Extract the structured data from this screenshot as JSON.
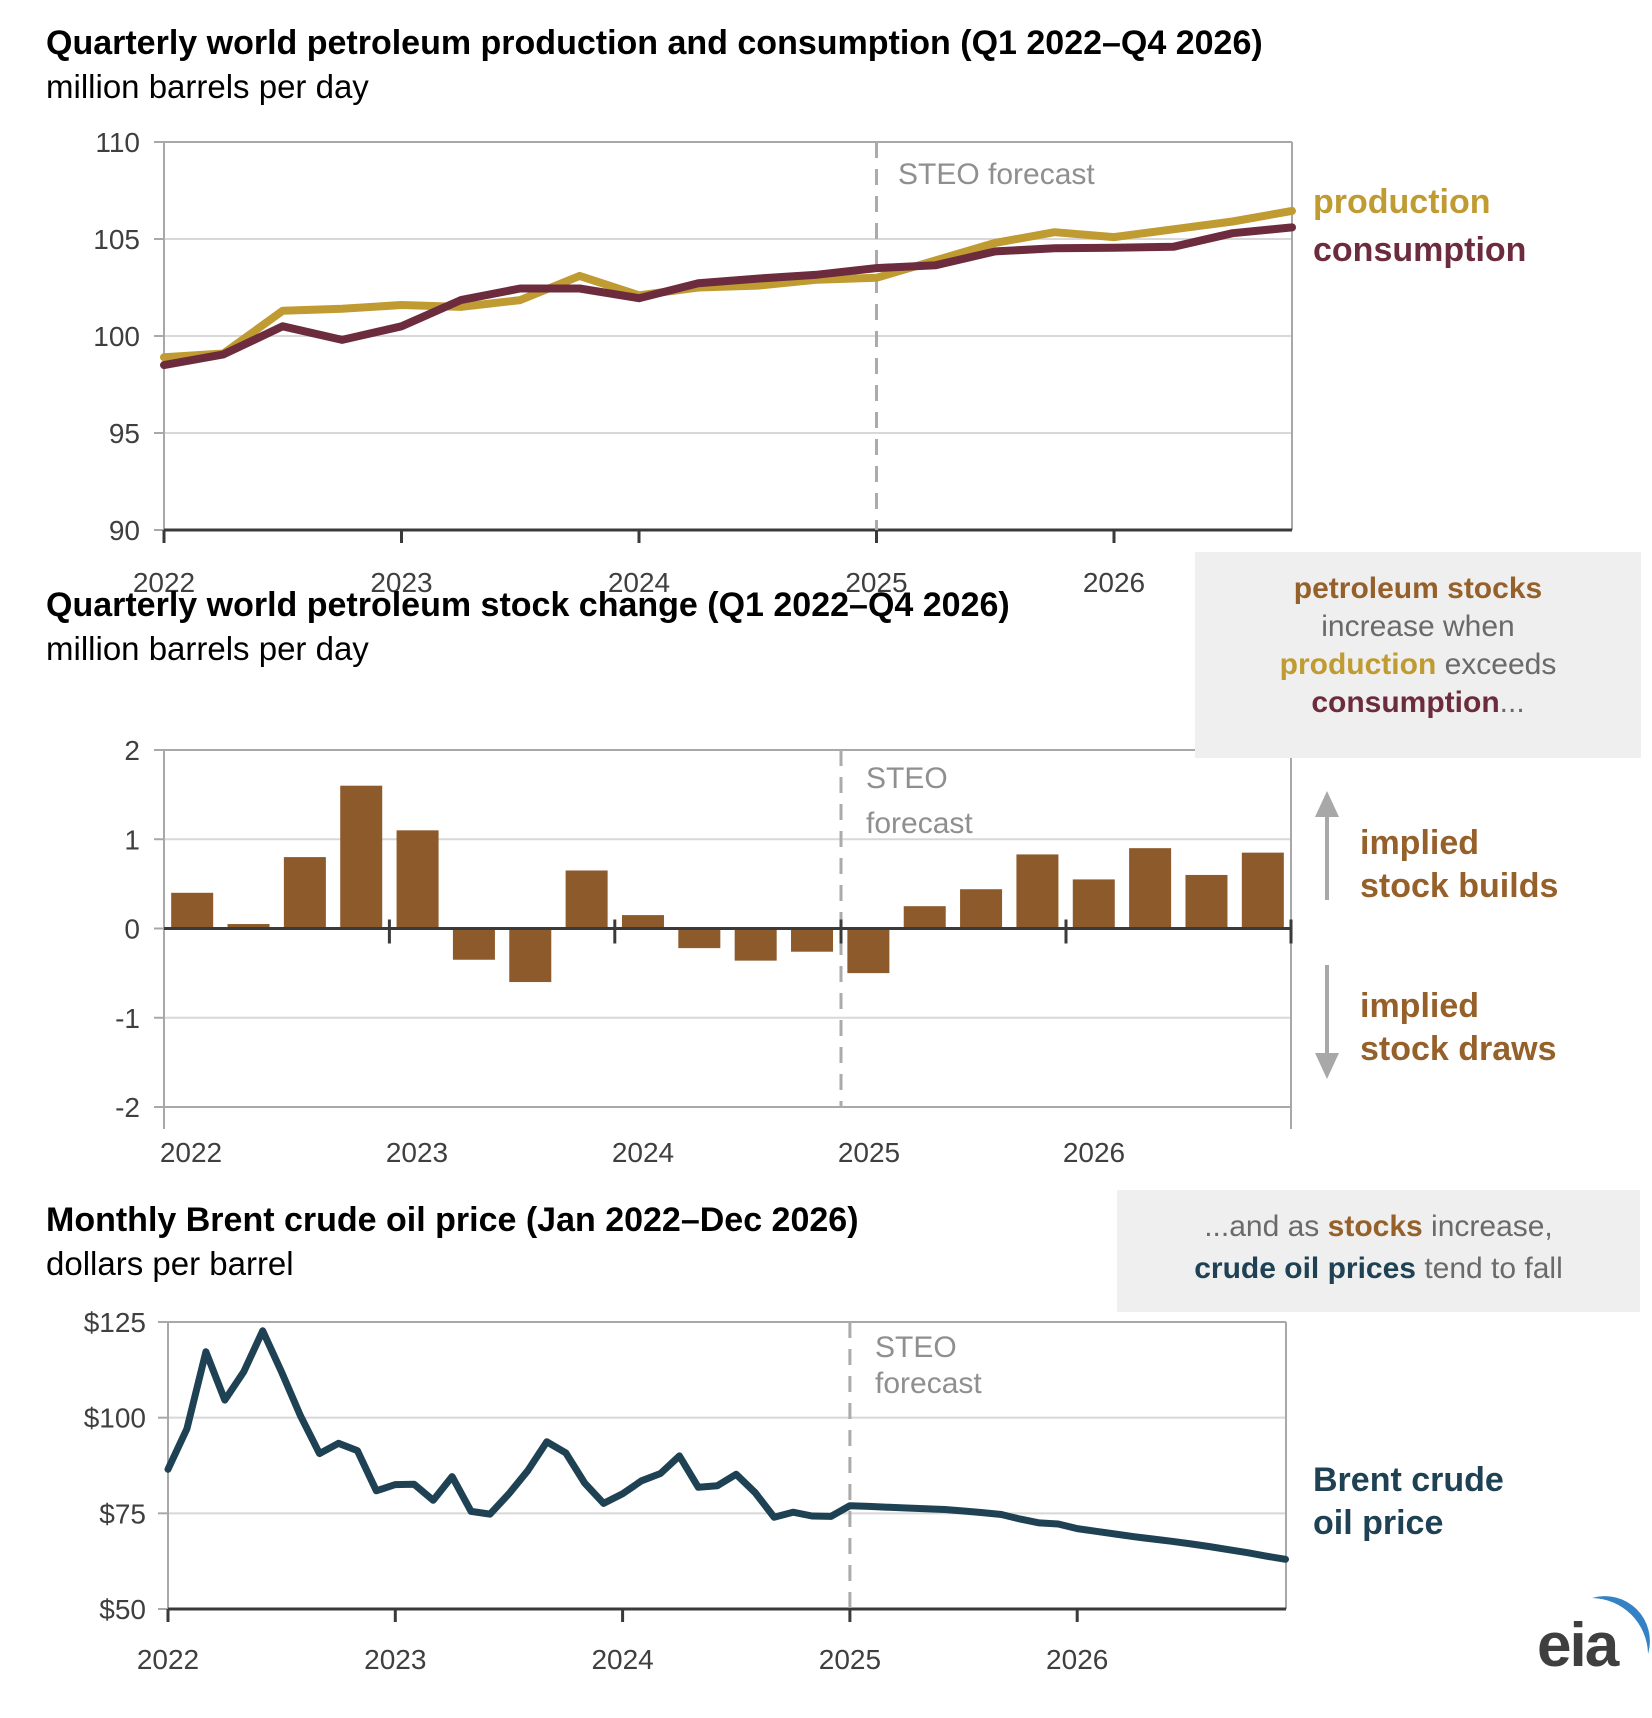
{
  "colors": {
    "production": "#bf9b32",
    "consumption": "#6d2c3e",
    "stocks_bar": "#8c5a2b",
    "stocks_text": "#96602a",
    "brent": "#1e4254",
    "gray_text": "#6a6a6a",
    "forecast_text": "#8f8f8f",
    "dashed_line": "#ababab",
    "grid": "#d8d8d8",
    "frame": "#a8a8a8",
    "axis_dark": "#3a3a3a",
    "tick_label": "#3f3f3f",
    "annotation_bg": "#efefef",
    "arrow": "#a8a8a8",
    "logo_blue": "#3482c5",
    "logo_text": "#3f3f3f"
  },
  "chart_data": [
    {
      "type": "line",
      "title": "Quarterly world petroleum production and consumption (Q1 2022–Q4 2026)",
      "subtitle": "million barrels per day",
      "xlabel": "",
      "ylabel": "million barrels per day",
      "ylim": [
        90,
        110
      ],
      "grid": true,
      "legend_position": "right",
      "x_tick_labels": [
        "2022",
        "2023",
        "2024",
        "2025",
        "2026"
      ],
      "y_tick_labels": [
        "110",
        "105",
        "100",
        "95",
        "90"
      ],
      "categories": [
        "Q1 2022",
        "Q2 2022",
        "Q3 2022",
        "Q4 2022",
        "Q1 2023",
        "Q2 2023",
        "Q3 2023",
        "Q4 2023",
        "Q1 2024",
        "Q2 2024",
        "Q3 2024",
        "Q4 2024",
        "Q1 2025",
        "Q2 2025",
        "Q3 2025",
        "Q4 2025",
        "Q1 2026",
        "Q2 2026",
        "Q3 2026",
        "Q4 2026"
      ],
      "series": [
        {
          "name": "production",
          "color_key": "production",
          "values": [
            98.9,
            99.1,
            101.3,
            101.4,
            101.6,
            101.5,
            101.85,
            103.1,
            102.1,
            102.5,
            102.6,
            102.9,
            103.0,
            103.9,
            104.8,
            105.35,
            105.1,
            105.5,
            105.9,
            106.45
          ]
        },
        {
          "name": "consumption",
          "color_key": "consumption",
          "values": [
            98.5,
            99.05,
            100.5,
            99.8,
            100.5,
            101.85,
            102.45,
            102.45,
            101.95,
            102.72,
            102.96,
            103.16,
            103.5,
            103.65,
            104.36,
            104.52,
            104.55,
            104.6,
            105.3,
            105.6
          ]
        }
      ],
      "forecast_divider": {
        "label": [
          "STEO forecast"
        ],
        "at": "Q1 2025"
      }
    },
    {
      "type": "bar",
      "title": "Quarterly world petroleum stock change (Q1 2022–Q4 2026)",
      "subtitle": "million barrels per day",
      "xlabel": "",
      "ylabel": "million barrels per day",
      "ylim": [
        -2,
        2
      ],
      "grid": true,
      "x_tick_labels": [
        "2022",
        "2023",
        "2024",
        "2025",
        "2026"
      ],
      "y_tick_labels": [
        "2",
        "1",
        "0",
        "-1",
        "-2"
      ],
      "categories": [
        "Q1 2022",
        "Q2 2022",
        "Q3 2022",
        "Q4 2022",
        "Q1 2023",
        "Q2 2023",
        "Q3 2023",
        "Q4 2023",
        "Q1 2024",
        "Q2 2024",
        "Q3 2024",
        "Q4 2024",
        "Q1 2025",
        "Q2 2025",
        "Q3 2025",
        "Q4 2025",
        "Q1 2026",
        "Q2 2026",
        "Q3 2026",
        "Q4 2026"
      ],
      "values": [
        0.4,
        0.05,
        0.8,
        1.6,
        1.1,
        -0.35,
        -0.6,
        0.65,
        0.15,
        -0.22,
        -0.36,
        -0.26,
        -0.5,
        0.25,
        0.44,
        0.83,
        0.55,
        0.9,
        0.6,
        0.85
      ],
      "bar_color_key": "stocks_bar",
      "forecast_divider": {
        "label": [
          "STEO",
          "forecast"
        ],
        "at": "Q1 2025"
      }
    },
    {
      "type": "line",
      "title": "Monthly Brent crude oil price (Jan 2022–Dec 2026)",
      "subtitle": "dollars per barrel",
      "xlabel": "",
      "ylabel": "dollars per barrel",
      "ylim": [
        50,
        125
      ],
      "grid": true,
      "start_month": "Jan 2022",
      "end_month": "Dec 2026",
      "x_tick_labels": [
        "2022",
        "2023",
        "2024",
        "2025",
        "2026"
      ],
      "y_tick_labels": [
        "$125",
        "$100",
        "$75",
        "$50"
      ],
      "series": [
        {
          "name": "Brent crude oil price",
          "color_key": "brent",
          "values": [
            86.5,
            97.1,
            117.2,
            104.6,
            112.0,
            122.7,
            111.9,
            100.4,
            90.6,
            93.3,
            91.4,
            80.9,
            82.5,
            82.6,
            78.4,
            84.6,
            75.5,
            74.8,
            80.1,
            86.2,
            93.7,
            90.8,
            82.9,
            77.6,
            80.1,
            83.5,
            85.4,
            90.0,
            81.8,
            82.2,
            85.2,
            80.4,
            74.0,
            75.3,
            74.3,
            74.2,
            77.0,
            76.8,
            76.6,
            76.4,
            76.2,
            76.0,
            75.6,
            75.2,
            74.7,
            73.5,
            72.5,
            72.2,
            71.0,
            70.3,
            69.6,
            68.9,
            68.3,
            67.7,
            67.0,
            66.3,
            65.5,
            64.7,
            63.8,
            63.0
          ]
        }
      ],
      "forecast_divider": {
        "label": [
          "STEO",
          "forecast"
        ],
        "at": "Jan 2025"
      }
    }
  ],
  "annotations": {
    "stocks_note": [
      [
        {
          "t": "petroleum stocks",
          "c": "brown"
        }
      ],
      [
        {
          "t": "increase when",
          "c": "gray"
        }
      ],
      [
        {
          "t": "production",
          "c": "gold"
        },
        {
          "t": " exceeds",
          "c": "gray"
        }
      ],
      [
        {
          "t": "consumption",
          "c": "maroon"
        },
        {
          "t": "...",
          "c": "gray"
        }
      ]
    ],
    "prices_note": [
      [
        {
          "t": "...and as ",
          "c": "gray"
        },
        {
          "t": "stocks",
          "c": "brown"
        },
        {
          "t": " increase,",
          "c": "gray"
        }
      ],
      [
        {
          "t": "crude oil prices",
          "c": "navy"
        },
        {
          "t": " tend to fall",
          "c": "gray"
        }
      ]
    ]
  },
  "side_labels": {
    "stock_builds": [
      "implied",
      "stock builds"
    ],
    "stock_draws": [
      "implied",
      "stock draws"
    ],
    "brent": [
      "Brent crude",
      "oil price"
    ]
  },
  "logo": {
    "text": "eia"
  }
}
